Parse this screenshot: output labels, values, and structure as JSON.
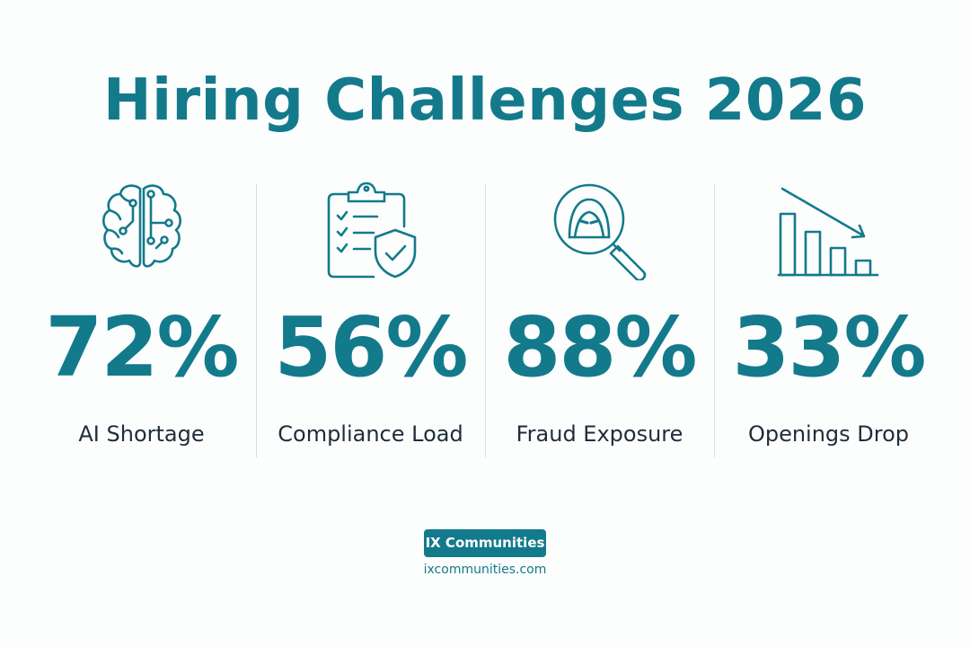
{
  "title": "Hiring Challenges 2026",
  "accent_color": "#137a8c",
  "text_color": "#1f2d3a",
  "stats": [
    {
      "value": "72%",
      "label": "AI Shortage",
      "icon": "brain-circuit-icon"
    },
    {
      "value": "56%",
      "label": "Compliance Load",
      "icon": "clipboard-shield-icon"
    },
    {
      "value": "88%",
      "label": "Fraud Exposure",
      "icon": "hacker-magnifier-icon"
    },
    {
      "value": "33%",
      "label": "Openings Drop",
      "icon": "declining-bar-chart-icon"
    }
  ],
  "brand": {
    "name": "IX Communities",
    "url": "ixcommunities.com"
  }
}
